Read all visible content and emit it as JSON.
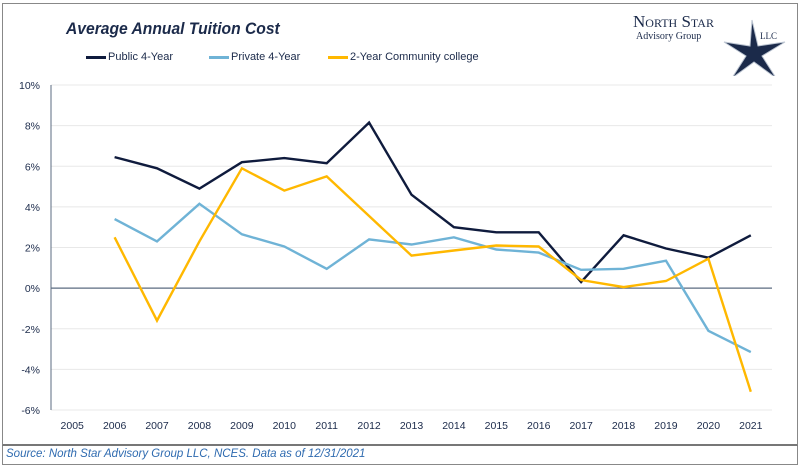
{
  "chart_data": {
    "type": "line",
    "title": "Average Annual Tuition Cost",
    "categories": [
      "2005",
      "2006",
      "2007",
      "2008",
      "2009",
      "2010",
      "2011",
      "2012",
      "2013",
      "2014",
      "2015",
      "2016",
      "2017",
      "2018",
      "2019",
      "2020",
      "2021"
    ],
    "yticks": [
      "10%",
      "8%",
      "6%",
      "4%",
      "2%",
      "0%",
      "-2%",
      "-4%",
      "-6%"
    ],
    "ylim": [
      -6,
      10
    ],
    "yunit": "%",
    "grid": true,
    "legend_position": "top",
    "series": [
      {
        "name": "Public 4-Year",
        "color": "#0f1b3d",
        "values": [
          null,
          6.45,
          5.9,
          4.9,
          6.2,
          6.4,
          6.15,
          8.15,
          4.6,
          3.0,
          2.75,
          2.75,
          0.3,
          2.6,
          1.95,
          1.5,
          2.6
        ]
      },
      {
        "name": "Private 4-Year",
        "color": "#6fb3d6",
        "values": [
          null,
          3.4,
          2.3,
          4.15,
          2.65,
          2.05,
          0.95,
          2.4,
          2.15,
          2.5,
          1.9,
          1.75,
          0.9,
          0.95,
          1.35,
          -2.1,
          -3.15
        ]
      },
      {
        "name": "2-Year Community college",
        "color": "#ffb800",
        "values": [
          null,
          2.5,
          -1.6,
          2.3,
          5.9,
          4.8,
          5.5,
          3.55,
          1.6,
          1.85,
          2.1,
          2.05,
          0.4,
          0.05,
          0.35,
          1.45,
          -5.1
        ]
      }
    ]
  },
  "logo": {
    "line1": "North Star",
    "line2": "Advisory Group",
    "line3": "LLC"
  },
  "source": "Source: North Star Advisory Group LLC, NCES. Data as of 12/31/2021"
}
